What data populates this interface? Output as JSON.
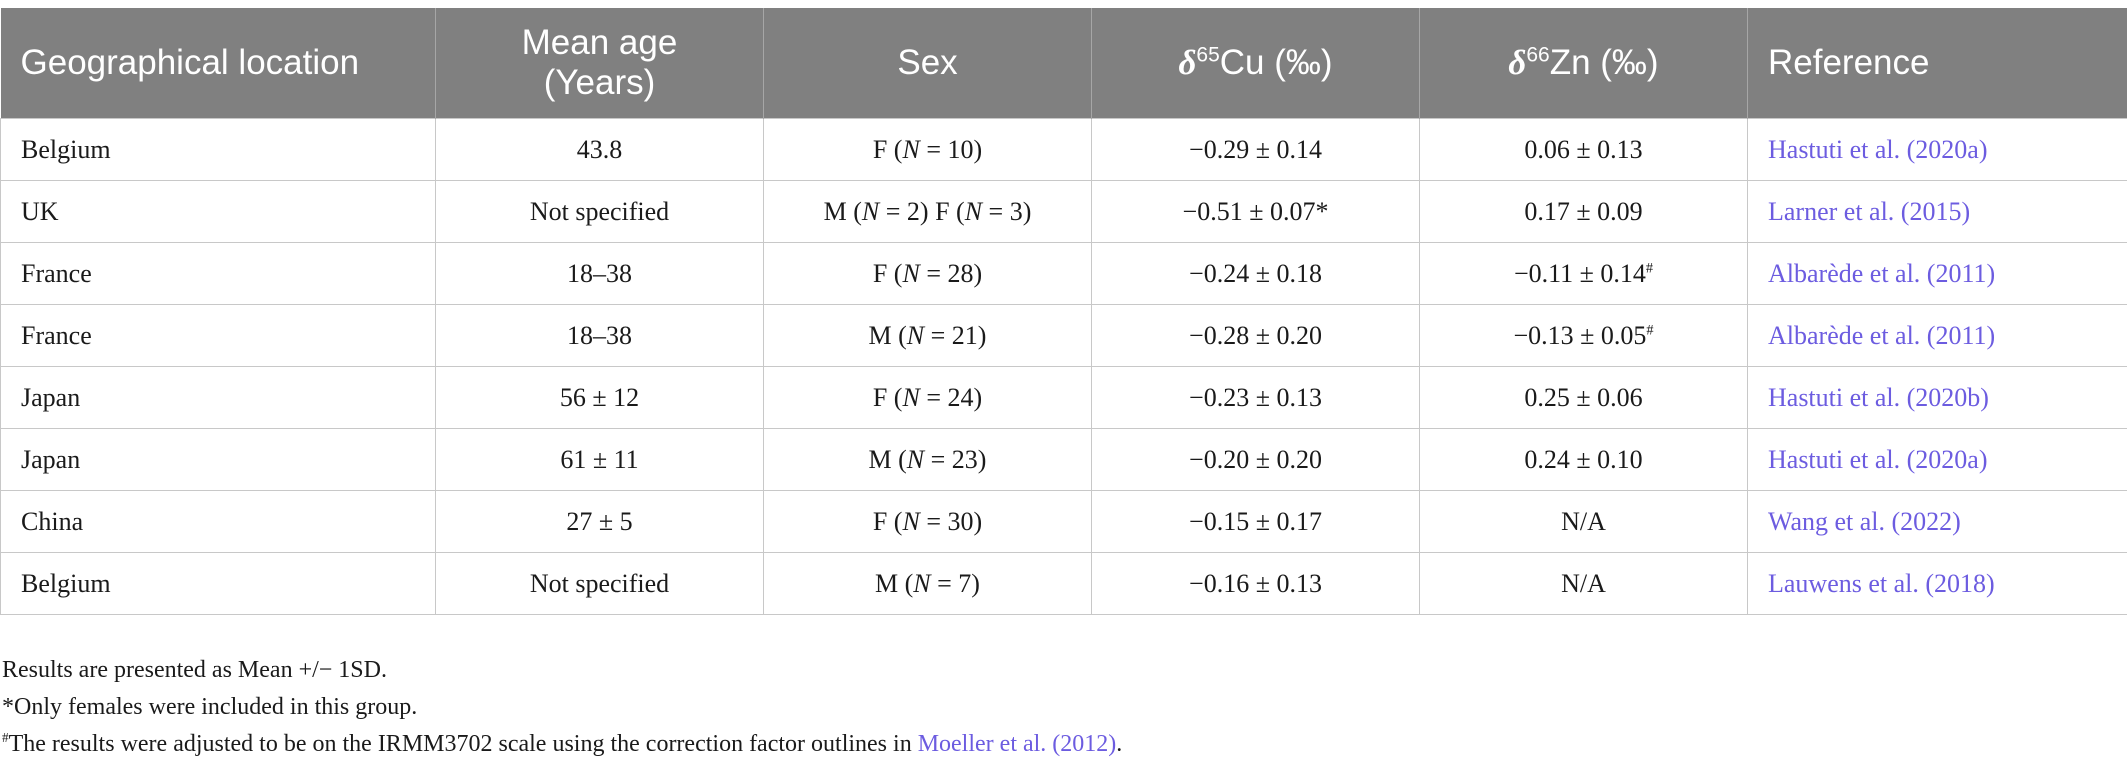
{
  "headers": {
    "location": "Geographical location",
    "age_line1": "Mean age",
    "age_line2": "(Years)",
    "sex": "Sex",
    "cu_delta": "δ",
    "cu_sup": "65",
    "cu_rest": "Cu (‰)",
    "zn_delta": "δ",
    "zn_sup": "66",
    "zn_rest": "Zn (‰)",
    "reference": "Reference"
  },
  "rows": [
    {
      "location": "Belgium",
      "age": "43.8",
      "sex_pre": "F (",
      "sex_n": "N",
      "sex_post": " = 10)",
      "sex2_pre": "",
      "sex2_n": "",
      "sex2_post": "",
      "cu": "−0.29 ± 0.14",
      "cu_mark": "",
      "zn": "0.06 ± 0.13",
      "zn_mark": "",
      "ref": "Hastuti et al. (2020a)"
    },
    {
      "location": "UK",
      "age": "Not specified",
      "sex_pre": "M (",
      "sex_n": "N",
      "sex_post": " = 2)",
      "sex2_pre": " F (",
      "sex2_n": "N",
      "sex2_post": " = 3)",
      "cu": "−0.51 ± 0.07",
      "cu_mark": "*",
      "zn": "0.17 ± 0.09",
      "zn_mark": "",
      "ref": "Larner et al. (2015)"
    },
    {
      "location": "France",
      "age": "18–38",
      "sex_pre": "F (",
      "sex_n": "N",
      "sex_post": " = 28)",
      "sex2_pre": "",
      "sex2_n": "",
      "sex2_post": "",
      "cu": "−0.24 ± 0.18",
      "cu_mark": "",
      "zn": "−0.11 ± 0.14",
      "zn_mark": "#",
      "ref": "Albarède et al. (2011)"
    },
    {
      "location": "France",
      "age": "18–38",
      "sex_pre": "M (",
      "sex_n": "N",
      "sex_post": " = 21)",
      "sex2_pre": "",
      "sex2_n": "",
      "sex2_post": "",
      "cu": "−0.28 ± 0.20",
      "cu_mark": "",
      "zn": "−0.13 ± 0.05",
      "zn_mark": "#",
      "ref": "Albarède et al. (2011)"
    },
    {
      "location": "Japan",
      "age": "56 ± 12",
      "sex_pre": "F (",
      "sex_n": "N",
      "sex_post": " = 24)",
      "sex2_pre": "",
      "sex2_n": "",
      "sex2_post": "",
      "cu": "−0.23 ± 0.13",
      "cu_mark": "",
      "zn": "0.25 ± 0.06",
      "zn_mark": "",
      "ref": "Hastuti et al. (2020b)"
    },
    {
      "location": "Japan",
      "age": "61 ± 11",
      "sex_pre": "M (",
      "sex_n": "N",
      "sex_post": " = 23)",
      "sex2_pre": "",
      "sex2_n": "",
      "sex2_post": "",
      "cu": "−0.20 ± 0.20",
      "cu_mark": "",
      "zn": "0.24 ± 0.10",
      "zn_mark": "",
      "ref": "Hastuti et al. (2020a)"
    },
    {
      "location": "China",
      "age": "27 ± 5",
      "sex_pre": "F (",
      "sex_n": "N",
      "sex_post": " = 30)",
      "sex2_pre": "",
      "sex2_n": "",
      "sex2_post": "",
      "cu": "−0.15 ± 0.17",
      "cu_mark": "",
      "zn": "N/A",
      "zn_mark": "",
      "ref": "Wang et al. (2022)"
    },
    {
      "location": "Belgium",
      "age": "Not specified",
      "sex_pre": "M (",
      "sex_n": "N",
      "sex_post": " = 7)",
      "sex2_pre": "",
      "sex2_n": "",
      "sex2_post": "",
      "cu": "−0.16 ± 0.13",
      "cu_mark": "",
      "zn": "N/A",
      "zn_mark": "",
      "ref": "Lauwens et al. (2018)"
    }
  ],
  "footnotes": {
    "note1": "Results are presented as Mean +/− 1SD.",
    "note2": "*Only females were included in this group.",
    "note3_mark": "#",
    "note3_text": "The results were adjusted to be on the IRMM3702 scale using the correction factor outlines in ",
    "note3_link": "Moeller et al. (2012)",
    "note3_end": "."
  }
}
